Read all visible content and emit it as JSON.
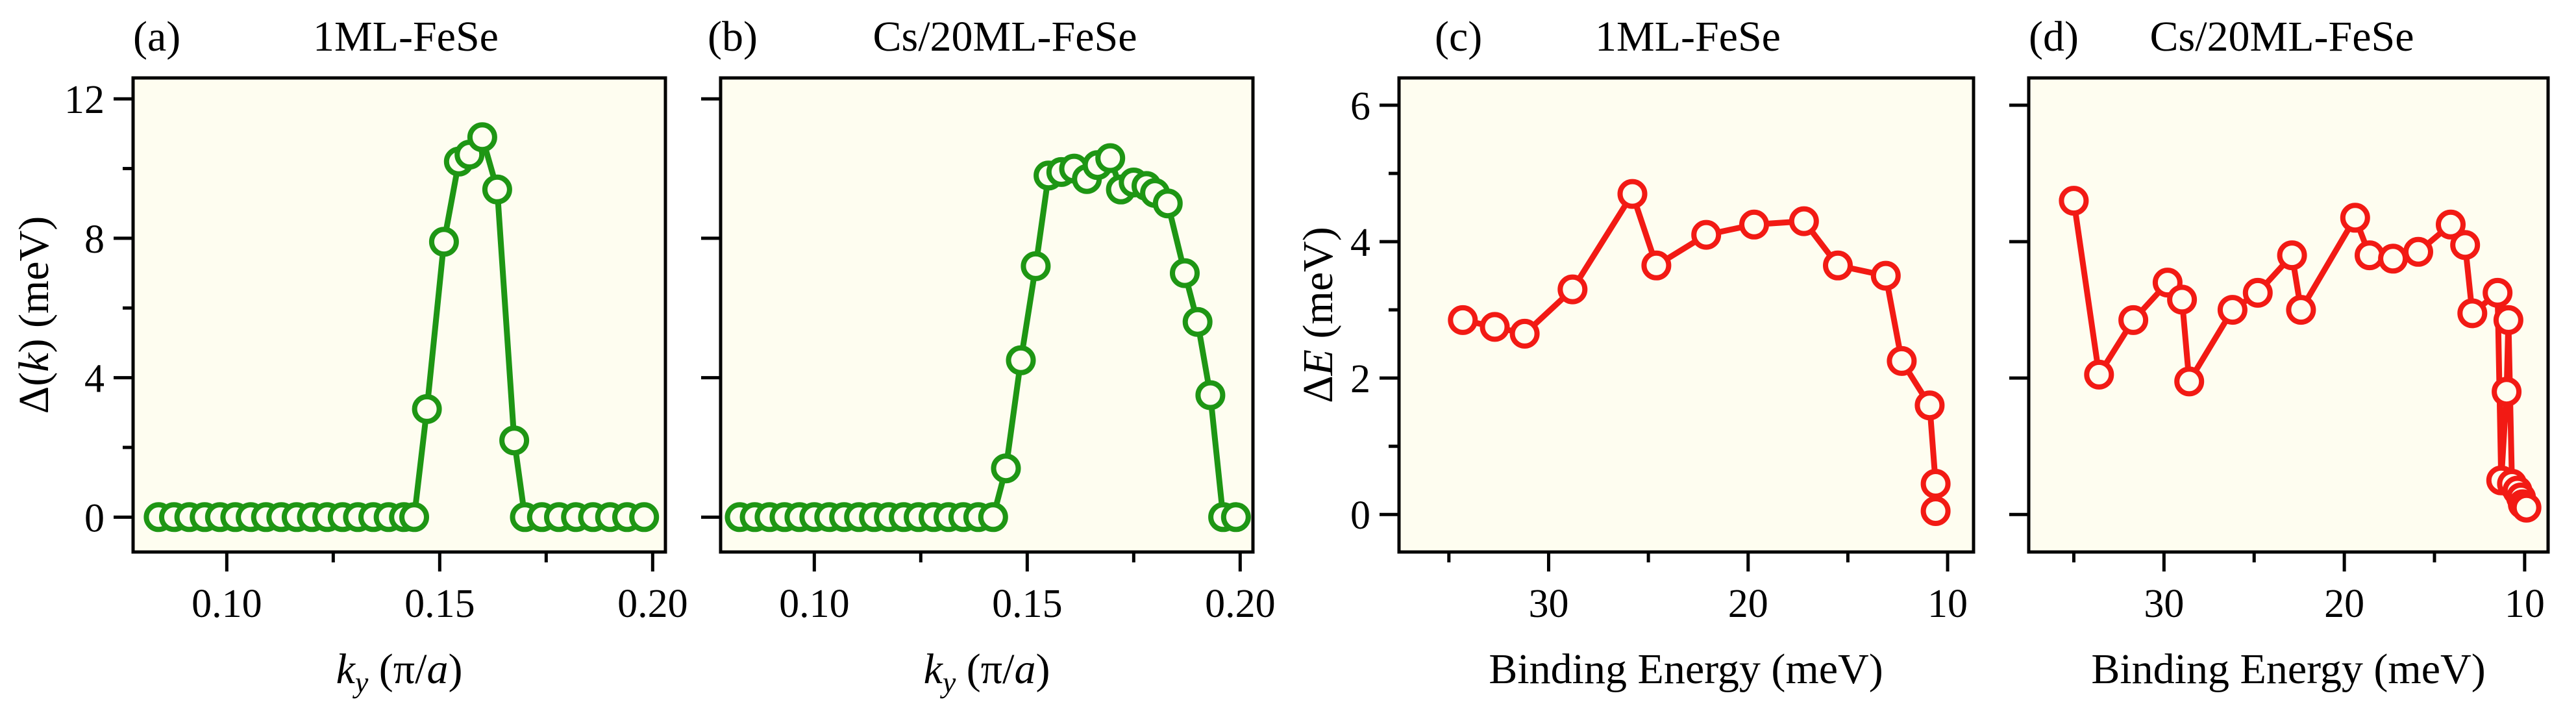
{
  "colors": {
    "plot_bg": "#fefdf0",
    "green": "#1e9614",
    "red": "#f21a14",
    "axis": "#000000"
  },
  "chart_data": [
    {
      "type": "line",
      "panel_label": "(a)",
      "title": "1ML-FeSe",
      "ylabel_parts": [
        "Δ(",
        "k",
        ") (meV)"
      ],
      "xlabel_parts": [
        "k",
        "y",
        " (π/",
        "a",
        ")"
      ],
      "series_color": "green",
      "xlim": [
        0.078,
        0.203
      ],
      "ylim": [
        -1.0,
        12.6
      ],
      "xticks": [
        0.1,
        0.15,
        0.2
      ],
      "xtick_labels": [
        "0.10",
        "0.15",
        "0.20"
      ],
      "xminor": [
        0.125,
        0.175
      ],
      "yticks": [
        0,
        4,
        8,
        12
      ],
      "ytick_labels": [
        "0",
        "4",
        "8",
        "12"
      ],
      "yminor": [
        2,
        6,
        10
      ],
      "x": [
        0.084,
        0.0876,
        0.0912,
        0.0948,
        0.0984,
        0.102,
        0.1056,
        0.1092,
        0.1128,
        0.1164,
        0.12,
        0.1236,
        0.1272,
        0.1308,
        0.1344,
        0.138,
        0.1416,
        0.144,
        0.147,
        0.151,
        0.1545,
        0.157,
        0.16,
        0.1635,
        0.1675,
        0.17,
        0.174,
        0.178,
        0.182,
        0.186,
        0.19,
        0.194,
        0.198
      ],
      "y": [
        0,
        0,
        0,
        0,
        0,
        0,
        0,
        0,
        0,
        0,
        0,
        0,
        0,
        0,
        0,
        0,
        0,
        0,
        3.1,
        7.9,
        10.2,
        10.4,
        10.9,
        9.4,
        2.2,
        0,
        0,
        0,
        0,
        0,
        0,
        0,
        0
      ]
    },
    {
      "type": "line",
      "panel_label": "(b)",
      "title": "Cs/20ML-FeSe",
      "ylabel_parts": [],
      "xlabel_parts": [
        "k",
        "y",
        " (π/",
        "a",
        ")"
      ],
      "series_color": "green",
      "xlim": [
        0.078,
        0.203
      ],
      "ylim": [
        -1.0,
        12.6
      ],
      "xticks": [
        0.1,
        0.15,
        0.2
      ],
      "xtick_labels": [
        "0.10",
        "0.15",
        "0.20"
      ],
      "xminor": [
        0.125,
        0.175
      ],
      "yticks": [
        0,
        4,
        8,
        12
      ],
      "ytick_labels": [],
      "yminor": [],
      "x": [
        0.0825,
        0.086,
        0.0895,
        0.093,
        0.0965,
        0.1,
        0.1035,
        0.107,
        0.1105,
        0.114,
        0.1175,
        0.121,
        0.1245,
        0.128,
        0.1315,
        0.135,
        0.1385,
        0.142,
        0.145,
        0.1485,
        0.152,
        0.155,
        0.158,
        0.161,
        0.164,
        0.1665,
        0.1695,
        0.172,
        0.175,
        0.178,
        0.18,
        0.183,
        0.187,
        0.19,
        0.193,
        0.196,
        0.199
      ],
      "y": [
        0,
        0,
        0,
        0,
        0,
        0,
        0,
        0,
        0,
        0,
        0,
        0,
        0,
        0,
        0,
        0,
        0,
        0,
        1.4,
        4.5,
        7.2,
        9.8,
        9.9,
        10.0,
        9.7,
        10.1,
        10.3,
        9.4,
        9.6,
        9.5,
        9.3,
        9.0,
        7.0,
        5.6,
        3.5,
        0,
        0
      ]
    },
    {
      "type": "line",
      "panel_label": "(c)",
      "title": "1ML-FeSe",
      "ylabel_parts": [
        "Δ",
        "E",
        " (meV)"
      ],
      "xlabel_parts": [
        "Binding Energy (meV)"
      ],
      "series_color": "red",
      "xlim": [
        37.5,
        8.7
      ],
      "ylim": [
        -0.55,
        6.4
      ],
      "xticks": [
        30,
        20,
        10
      ],
      "xtick_labels": [
        "30",
        "20",
        "10"
      ],
      "xminor": [
        35,
        25,
        15
      ],
      "yticks": [
        0,
        2,
        4,
        6
      ],
      "ytick_labels": [
        "0",
        "2",
        "4",
        "6"
      ],
      "yminor": [
        1,
        3,
        5
      ],
      "x": [
        34.3,
        32.7,
        31.2,
        28.8,
        25.8,
        24.6,
        22.1,
        19.7,
        17.2,
        15.5,
        13.1,
        12.3,
        10.9,
        10.6,
        10.6
      ],
      "y": [
        2.85,
        2.75,
        2.65,
        3.3,
        4.7,
        3.65,
        4.1,
        4.25,
        4.3,
        3.65,
        3.5,
        2.25,
        1.6,
        0.45,
        0.05
      ]
    },
    {
      "type": "line",
      "panel_label": "(d)",
      "title": "Cs/20ML-FeSe",
      "ylabel_parts": [],
      "xlabel_parts": [
        "Binding Energy (meV)"
      ],
      "series_color": "red",
      "xlim": [
        37.5,
        8.7
      ],
      "ylim": [
        -0.55,
        6.4
      ],
      "xticks": [
        30,
        20,
        10
      ],
      "xtick_labels": [
        "30",
        "20",
        "10"
      ],
      "xminor": [
        35,
        25,
        15
      ],
      "yticks": [
        0,
        2,
        4,
        6
      ],
      "ytick_labels": [],
      "yminor": [],
      "x": [
        35.0,
        33.6,
        31.7,
        29.8,
        29.0,
        28.6,
        26.2,
        24.8,
        22.9,
        22.4,
        19.4,
        18.6,
        17.3,
        15.9,
        14.1,
        13.3,
        12.9,
        11.5,
        11.3,
        11.0,
        10.9,
        10.7,
        10.4,
        10.2,
        10.1,
        9.9
      ],
      "y": [
        4.6,
        2.05,
        2.85,
        3.4,
        3.15,
        1.95,
        3.0,
        3.25,
        3.8,
        3.0,
        4.35,
        3.8,
        3.75,
        3.85,
        4.25,
        3.95,
        2.95,
        3.25,
        0.5,
        1.8,
        2.85,
        0.45,
        0.35,
        0.25,
        0.15,
        0.1
      ]
    }
  ]
}
